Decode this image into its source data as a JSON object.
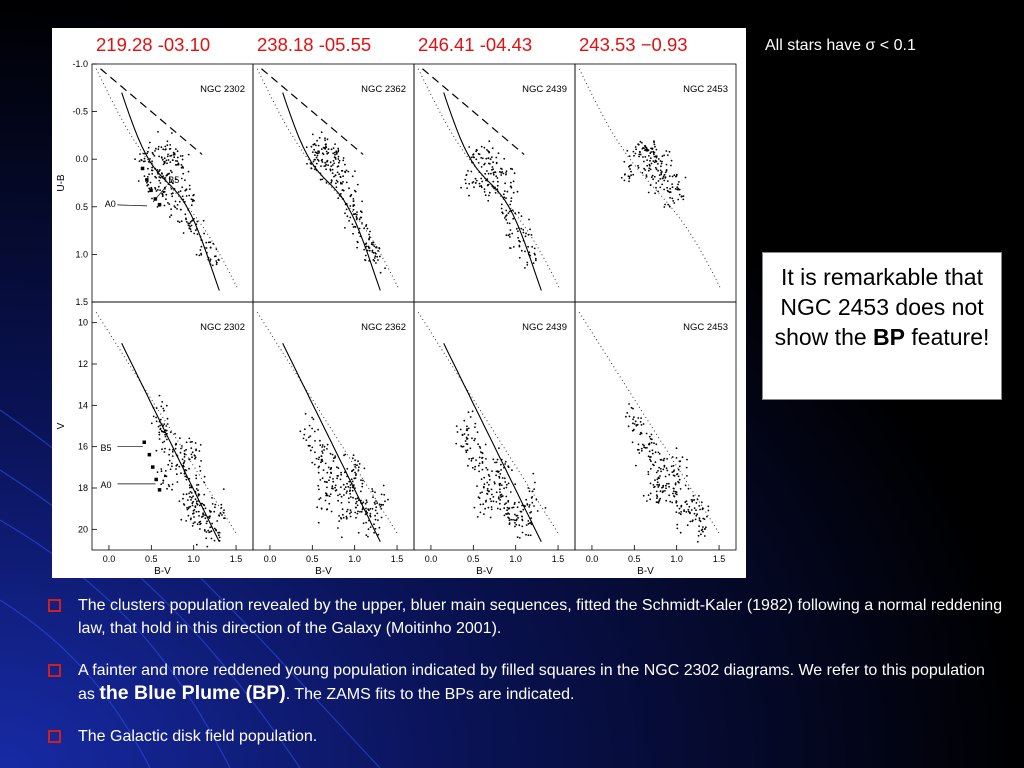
{
  "coords": [
    "219.28 -03.10",
    "238.18 -05.55",
    "246.41 -04.43",
    "243.53 −0.93"
  ],
  "sigma_note": "All stars have σ < 0.1",
  "remark": {
    "before": "It is remarkable that NGC 2453 does not show the ",
    "bold": "BP",
    "after": " feature!"
  },
  "bullets": [
    {
      "text": "The clusters population revealed by the upper, bluer main sequences, fitted the Schmidt-Kaler (1982) following a normal reddening law, that hold in this direction of the Galaxy (Moitinho 2001)."
    },
    {
      "before": "A fainter and more reddened young population indicated by filled squares in the NGC 2302 diagrams. We refer to this population as ",
      "bold": "the Blue Plume (BP)",
      "after": ". The ZAMS fits to the BPs are indicated."
    },
    {
      "text": "The Galactic disk field population."
    }
  ],
  "colors": {
    "coord_text": "#e31010",
    "bullet_box": "#cf2020",
    "background_glow": "#1a2fb8"
  },
  "chart_data": {
    "type": "scatter",
    "clusters": [
      "NGC 2302",
      "NGC 2362",
      "NGC 2439",
      "NGC 2453"
    ],
    "top_row": {
      "ylabel": "U-B",
      "ylim": [
        -1.0,
        1.5
      ],
      "yticks": [
        -1.0,
        -0.5,
        0.0,
        0.5,
        1.0,
        1.5
      ],
      "ytick_labels": [
        "-1.0",
        "-0.5",
        "0.0",
        "0.5",
        "1.0",
        "1.5"
      ],
      "xlim": [
        -0.2,
        1.7
      ],
      "grid": false,
      "annotations": [
        {
          "cluster": "NGC 2302",
          "labels": [
            "B5",
            "A0"
          ]
        }
      ],
      "series": [
        {
          "cluster": "NGC 2302",
          "field_points": [
            [
              0.42,
              -0.02
            ],
            [
              0.6,
              -0.08
            ],
            [
              0.72,
              -0.1
            ],
            [
              0.8,
              -0.05
            ],
            [
              0.7,
              0.1
            ],
            [
              0.55,
              0.1
            ],
            [
              0.85,
              0.2
            ],
            [
              0.62,
              0.35
            ],
            [
              0.78,
              0.45
            ],
            [
              0.9,
              0.38
            ],
            [
              0.95,
              0.6
            ],
            [
              1.0,
              0.75
            ],
            [
              1.1,
              0.9
            ],
            [
              1.2,
              1.05
            ],
            [
              0.5,
              0.25
            ],
            [
              0.66,
              0.22
            ]
          ],
          "bp_points": [
            [
              0.4,
              0.1
            ],
            [
              0.45,
              0.22
            ],
            [
              0.5,
              0.33
            ],
            [
              0.55,
              0.42
            ],
            [
              0.6,
              0.48
            ]
          ]
        },
        {
          "cluster": "NGC 2362",
          "field_points": [
            [
              0.55,
              -0.1
            ],
            [
              0.65,
              -0.15
            ],
            [
              0.72,
              -0.05
            ],
            [
              0.78,
              0.0
            ],
            [
              0.6,
              0.05
            ],
            [
              0.85,
              0.15
            ],
            [
              0.9,
              0.3
            ],
            [
              0.95,
              0.45
            ],
            [
              1.0,
              0.6
            ],
            [
              1.05,
              0.7
            ],
            [
              1.12,
              0.85
            ],
            [
              1.18,
              0.95
            ],
            [
              1.25,
              1.05
            ],
            [
              0.5,
              0.0
            ],
            [
              0.7,
              0.18
            ]
          ],
          "bp_points": []
        },
        {
          "cluster": "NGC 2439",
          "field_points": [
            [
              0.55,
              0.0
            ],
            [
              0.65,
              -0.08
            ],
            [
              0.75,
              0.05
            ],
            [
              0.85,
              0.12
            ],
            [
              0.62,
              0.25
            ],
            [
              0.9,
              0.35
            ],
            [
              0.95,
              0.55
            ],
            [
              1.0,
              0.7
            ],
            [
              1.08,
              0.85
            ],
            [
              1.15,
              1.0
            ],
            [
              0.45,
              0.2
            ],
            [
              0.72,
              0.3
            ]
          ],
          "bp_points": []
        },
        {
          "cluster": "NGC 2453",
          "field_points": [
            [
              0.55,
              -0.05
            ],
            [
              0.65,
              -0.12
            ],
            [
              0.75,
              -0.05
            ],
            [
              0.82,
              0.05
            ],
            [
              0.7,
              0.12
            ],
            [
              0.9,
              0.2
            ],
            [
              0.95,
              0.4
            ],
            [
              1.02,
              0.3
            ],
            [
              0.6,
              0.02
            ],
            [
              0.45,
              0.15
            ],
            [
              0.8,
              0.25
            ]
          ],
          "bp_points": []
        }
      ]
    },
    "bottom_row": {
      "xlabel": "B-V",
      "ylabel": "V",
      "ylim": [
        9,
        21
      ],
      "yticks": [
        10,
        12,
        14,
        16,
        18,
        20
      ],
      "ytick_labels": [
        "10",
        "12",
        "14",
        "16",
        "18",
        "20"
      ],
      "xlim": [
        -0.2,
        1.7
      ],
      "xticks": [
        0.0,
        0.5,
        1.0,
        1.5
      ],
      "xtick_labels": [
        "0.0",
        "0.5",
        "1.0",
        "1.5"
      ],
      "grid": false,
      "annotations": [
        {
          "cluster": "NGC 2302",
          "labels": [
            "B5",
            "A0"
          ]
        }
      ],
      "series": [
        {
          "cluster": "NGC 2302",
          "field_points": [
            [
              0.65,
              15.5
            ],
            [
              0.8,
              16.2
            ],
            [
              0.9,
              17.0
            ],
            [
              1.0,
              18.0
            ],
            [
              1.05,
              19.0
            ],
            [
              1.1,
              19.6
            ],
            [
              1.2,
              20.0
            ],
            [
              0.7,
              17.5
            ],
            [
              0.95,
              18.8
            ],
            [
              1.3,
              19.2
            ],
            [
              0.6,
              14.5
            ],
            [
              1.0,
              16.5
            ]
          ],
          "bp_points": [
            [
              0.42,
              15.8
            ],
            [
              0.48,
              16.4
            ],
            [
              0.52,
              17.0
            ],
            [
              0.56,
              17.6
            ],
            [
              0.6,
              18.1
            ]
          ]
        },
        {
          "cluster": "NGC 2362",
          "field_points": [
            [
              0.6,
              16.5
            ],
            [
              0.7,
              17.0
            ],
            [
              0.8,
              17.5
            ],
            [
              0.9,
              18.0
            ],
            [
              1.0,
              18.5
            ],
            [
              1.1,
              19.0
            ],
            [
              1.2,
              19.5
            ],
            [
              0.65,
              18.5
            ],
            [
              0.85,
              19.2
            ],
            [
              1.0,
              17.2
            ],
            [
              0.5,
              15.5
            ],
            [
              1.3,
              18.8
            ]
          ],
          "bp_points": []
        },
        {
          "cluster": "NGC 2439",
          "field_points": [
            [
              0.5,
              16.0
            ],
            [
              0.6,
              17.0
            ],
            [
              0.7,
              17.6
            ],
            [
              0.8,
              18.2
            ],
            [
              0.9,
              18.8
            ],
            [
              1.0,
              19.4
            ],
            [
              1.1,
              19.8
            ],
            [
              0.65,
              18.8
            ],
            [
              0.4,
              15.2
            ],
            [
              0.85,
              17.0
            ],
            [
              1.2,
              18.6
            ]
          ],
          "bp_points": []
        },
        {
          "cluster": "NGC 2453",
          "field_points": [
            [
              0.6,
              15.8
            ],
            [
              0.7,
              16.5
            ],
            [
              0.8,
              17.2
            ],
            [
              0.9,
              17.8
            ],
            [
              1.0,
              18.4
            ],
            [
              1.1,
              18.9
            ],
            [
              1.2,
              19.3
            ],
            [
              1.3,
              19.6
            ],
            [
              0.75,
              18.2
            ],
            [
              1.0,
              17.0
            ],
            [
              0.5,
              14.8
            ]
          ],
          "bp_points": []
        }
      ]
    }
  }
}
